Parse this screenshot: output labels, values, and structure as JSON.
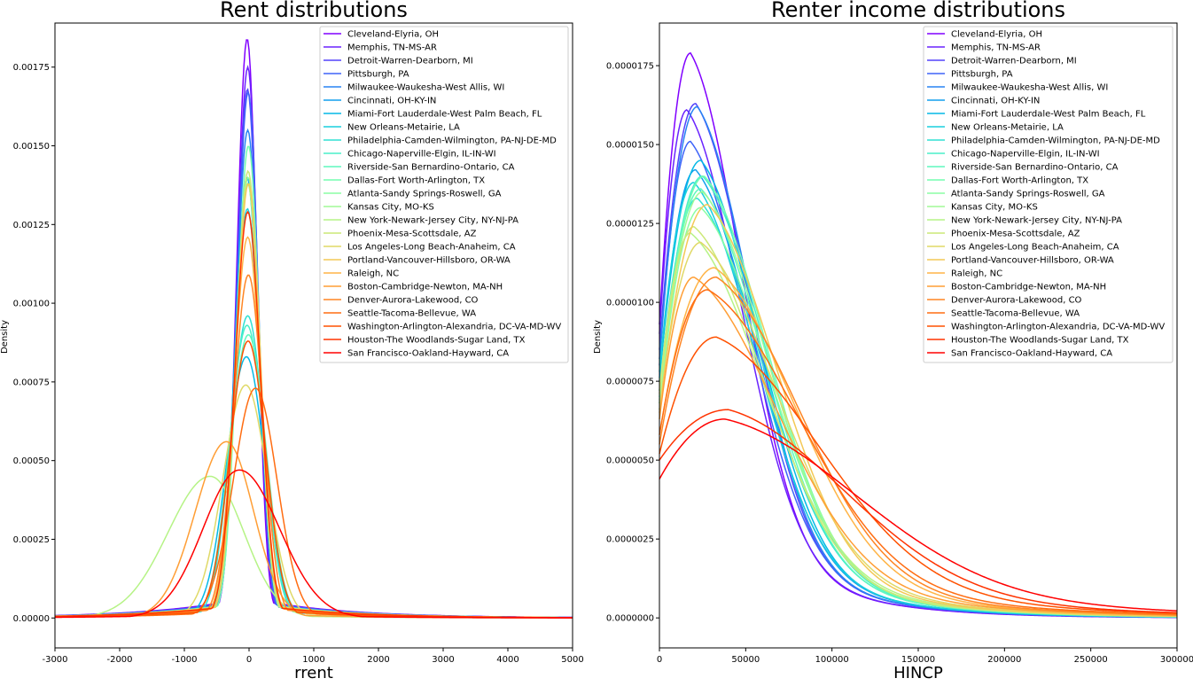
{
  "chart_data": [
    {
      "type": "line",
      "title": "Rent distributions",
      "xlabel": "rrent",
      "ylabel": "Density",
      "xlim": [
        -3000,
        5000
      ],
      "ylim": [
        -9.5e-05,
        0.00189
      ],
      "xticks": [
        -3000,
        -2000,
        -1000,
        0,
        1000,
        2000,
        3000,
        4000,
        5000
      ],
      "xtick_labels": [
        "-3000",
        "-2000",
        "-1000",
        "0",
        "1000",
        "2000",
        "3000",
        "4000",
        "5000"
      ],
      "yticks": [
        0,
        0.00025,
        0.0005,
        0.00075,
        0.001,
        0.00125,
        0.0015,
        0.00175
      ],
      "ytick_labels": [
        "0.00000",
        "0.00025",
        "0.00050",
        "0.00075",
        "0.00100",
        "0.00125",
        "0.00150",
        "0.00175"
      ],
      "legend_position": "top-right",
      "grid": false,
      "series": [
        {
          "name": "Cleveland-Elyria, OH",
          "color": "#8000ff",
          "peak": 0.00184,
          "mode": -30,
          "sd_left": 160,
          "sd_right": 150
        },
        {
          "name": "Memphis, TN-MS-AR",
          "color": "#6a23fe",
          "peak": 0.00175,
          "mode": -20,
          "sd_left": 165,
          "sd_right": 155
        },
        {
          "name": "Detroit-Warren-Dearborn, MI",
          "color": "#5444fc",
          "peak": 0.00168,
          "mode": -25,
          "sd_left": 170,
          "sd_right": 160
        },
        {
          "name": "Pittsburgh, PA",
          "color": "#3e64f9",
          "peak": 0.00167,
          "mode": -15,
          "sd_left": 170,
          "sd_right": 160
        },
        {
          "name": "Milwaukee-Waukesha-West Allis, WI",
          "color": "#2884f3",
          "peak": 0.00155,
          "mode": -20,
          "sd_left": 180,
          "sd_right": 170
        },
        {
          "name": "Cincinnati, OH-KY-IN",
          "color": "#129fee",
          "peak": 0.0014,
          "mode": -30,
          "sd_left": 190,
          "sd_right": 180
        },
        {
          "name": "Miami-Fort Lauderdale-West Palm Beach, FL",
          "color": "#04b9e6",
          "peak": 0.00083,
          "mode": -40,
          "sd_left": 300,
          "sd_right": 280
        },
        {
          "name": "New Orleans-Metairie, LA",
          "color": "#1acfdd",
          "peak": 0.0013,
          "mode": -25,
          "sd_left": 200,
          "sd_right": 190
        },
        {
          "name": "Philadelphia-Camden-Wilmington, PA-NJ-DE-MD",
          "color": "#30e1d3",
          "peak": 0.00096,
          "mode": -20,
          "sd_left": 260,
          "sd_right": 250
        },
        {
          "name": "Chicago-Naperville-Elgin, IL-IN-WI",
          "color": "#48efc8",
          "peak": 0.00093,
          "mode": -30,
          "sd_left": 270,
          "sd_right": 260
        },
        {
          "name": "Riverside-San Bernardino-Ontario, CA",
          "color": "#5ef9bd",
          "peak": 0.0009,
          "mode": -10,
          "sd_left": 280,
          "sd_right": 270
        },
        {
          "name": "Dallas-Fort Worth-Arlington, TX",
          "color": "#74feb0",
          "peak": 0.0015,
          "mode": -10,
          "sd_left": 175,
          "sd_right": 170
        },
        {
          "name": "Atlanta-Sandy Springs-Roswell, GA",
          "color": "#8afea3",
          "peak": 0.0014,
          "mode": -15,
          "sd_left": 185,
          "sd_right": 180
        },
        {
          "name": "Kansas City, MO-KS",
          "color": "#a0fa95",
          "peak": 0.00138,
          "mode": -20,
          "sd_left": 190,
          "sd_right": 180
        },
        {
          "name": "New York-Newark-Jersey City, NY-NJ-PA",
          "color": "#b6f386",
          "peak": 0.00045,
          "mode": -600,
          "sd_left": 650,
          "sd_right": 520
        },
        {
          "name": "Phoenix-Mesa-Scottsdale, AZ",
          "color": "#cce877",
          "peak": 0.00142,
          "mode": -15,
          "sd_left": 185,
          "sd_right": 175
        },
        {
          "name": "Los Angeles-Long Beach-Anaheim, CA",
          "color": "#e0d967",
          "peak": 0.00074,
          "mode": -50,
          "sd_left": 350,
          "sd_right": 330
        },
        {
          "name": "Portland-Vancouver-Hillsboro, OR-WA",
          "color": "#f4c856",
          "peak": 0.00138,
          "mode": -10,
          "sd_left": 190,
          "sd_right": 185
        },
        {
          "name": "Raleigh, NC",
          "color": "#ffb446",
          "peak": 0.00121,
          "mode": -20,
          "sd_left": 210,
          "sd_right": 200
        },
        {
          "name": "Boston-Cambridge-Newton, MA-NH",
          "color": "#ff9e35",
          "peak": 0.00056,
          "mode": -350,
          "sd_left": 480,
          "sd_right": 420
        },
        {
          "name": "Denver-Aurora-Lakewood, CO",
          "color": "#ff8624",
          "peak": 0.00109,
          "mode": -10,
          "sd_left": 230,
          "sd_right": 220
        },
        {
          "name": "Seattle-Tacoma-Bellevue, WA",
          "color": "#ff6d12",
          "peak": 0.00073,
          "mode": 100,
          "sd_left": 340,
          "sd_right": 330
        },
        {
          "name": "Washington-Arlington-Alexandria, DC-VA-MD-WV",
          "color": "#ff5100",
          "peak": 0.00088,
          "mode": -15,
          "sd_left": 280,
          "sd_right": 270
        },
        {
          "name": "Houston-The Woodlands-Sugar Land, TX",
          "color": "#ff3300",
          "peak": 0.00129,
          "mode": -20,
          "sd_left": 200,
          "sd_right": 195
        },
        {
          "name": "San Francisco-Oakland-Hayward, CA",
          "color": "#ff0000",
          "peak": 0.00047,
          "mode": -150,
          "sd_left": 560,
          "sd_right": 620
        }
      ]
    },
    {
      "type": "line",
      "title": "Renter income distributions",
      "xlabel": "HINCP",
      "ylabel": "Density",
      "xlim": [
        0,
        300000
      ],
      "ylim": [
        -9.5e-07,
        1.885e-05
      ],
      "xticks": [
        0,
        50000,
        100000,
        150000,
        200000,
        250000,
        300000
      ],
      "xtick_labels": [
        "0",
        "50000",
        "100000",
        "150000",
        "200000",
        "250000",
        "300000"
      ],
      "yticks": [
        0,
        2.5e-06,
        5e-06,
        7.5e-06,
        1e-05,
        1.25e-05,
        1.5e-05,
        1.75e-05
      ],
      "ytick_labels": [
        "0.0000000",
        "0.0000025",
        "0.0000050",
        "0.0000075",
        "0.0000100",
        "0.0000125",
        "0.0000150",
        "0.0000175"
      ],
      "legend_position": "top-right",
      "grid": false,
      "series": [
        {
          "name": "Cleveland-Elyria, OH",
          "color": "#8000ff",
          "peak": 1.79e-05,
          "mode": 18000,
          "start": 9.3e-06,
          "scale_right": 31000
        },
        {
          "name": "Memphis, TN-MS-AR",
          "color": "#6a23fe",
          "peak": 1.61e-05,
          "mode": 16000,
          "start": 9e-06,
          "scale_right": 33000
        },
        {
          "name": "Detroit-Warren-Dearborn, MI",
          "color": "#5444fc",
          "peak": 1.63e-05,
          "mode": 21000,
          "start": 8.5e-06,
          "scale_right": 33000
        },
        {
          "name": "Pittsburgh, PA",
          "color": "#3e64f9",
          "peak": 1.51e-05,
          "mode": 18000,
          "start": 8e-06,
          "scale_right": 35000
        },
        {
          "name": "Milwaukee-Waukesha-West Allis, WI",
          "color": "#2884f3",
          "peak": 1.62e-05,
          "mode": 22000,
          "start": 8.2e-06,
          "scale_right": 33000
        },
        {
          "name": "Cincinnati, OH-KY-IN",
          "color": "#129fee",
          "peak": 1.42e-05,
          "mode": 21000,
          "start": 7.5e-06,
          "scale_right": 36000
        },
        {
          "name": "Miami-Fort Lauderdale-West Palm Beach, FL",
          "color": "#04b9e6",
          "peak": 1.45e-05,
          "mode": 24000,
          "start": 7.6e-06,
          "scale_right": 35000
        },
        {
          "name": "New Orleans-Metairie, LA",
          "color": "#1acfdd",
          "peak": 1.38e-05,
          "mode": 20000,
          "start": 7.8e-06,
          "scale_right": 37000
        },
        {
          "name": "Philadelphia-Camden-Wilmington, PA-NJ-DE-MD",
          "color": "#30e1d3",
          "peak": 1.33e-05,
          "mode": 22000,
          "start": 7.2e-06,
          "scale_right": 39000
        },
        {
          "name": "Chicago-Naperville-Elgin, IL-IN-WI",
          "color": "#48efc8",
          "peak": 1.4e-05,
          "mode": 25000,
          "start": 7e-06,
          "scale_right": 38000
        },
        {
          "name": "Riverside-San Bernardino-Ontario, CA",
          "color": "#5ef9bd",
          "peak": 1.36e-05,
          "mode": 24000,
          "start": 6.8e-06,
          "scale_right": 38000
        },
        {
          "name": "Dallas-Fort Worth-Arlington, TX",
          "color": "#74feb0",
          "peak": 1.4e-05,
          "mode": 26000,
          "start": 6.9e-06,
          "scale_right": 38000
        },
        {
          "name": "Atlanta-Sandy Springs-Roswell, GA",
          "color": "#8afea3",
          "peak": 1.3e-05,
          "mode": 24000,
          "start": 6.6e-06,
          "scale_right": 40000
        },
        {
          "name": "Kansas City, MO-KS",
          "color": "#a0fa95",
          "peak": 1.35e-05,
          "mode": 25000,
          "start": 6.8e-06,
          "scale_right": 39000
        },
        {
          "name": "New York-Newark-Jersey City, NY-NJ-PA",
          "color": "#b6f386",
          "peak": 1.22e-05,
          "mode": 18000,
          "start": 7.2e-06,
          "scale_right": 44000
        },
        {
          "name": "Phoenix-Mesa-Scottsdale, AZ",
          "color": "#cce877",
          "peak": 1.24e-05,
          "mode": 20000,
          "start": 7.1e-06,
          "scale_right": 42000
        },
        {
          "name": "Los Angeles-Long Beach-Anaheim, CA",
          "color": "#e0d967",
          "peak": 1.19e-05,
          "mode": 24000,
          "start": 6.6e-06,
          "scale_right": 45000
        },
        {
          "name": "Portland-Vancouver-Hillsboro, OR-WA",
          "color": "#f4c856",
          "peak": 1.31e-05,
          "mode": 28000,
          "start": 6.5e-06,
          "scale_right": 41000
        },
        {
          "name": "Raleigh, NC",
          "color": "#ffb446",
          "peak": 1.11e-05,
          "mode": 32000,
          "start": 5.8e-06,
          "scale_right": 48000
        },
        {
          "name": "Boston-Cambridge-Newton, MA-NH",
          "color": "#ff9e35",
          "peak": 1.08e-05,
          "mode": 20000,
          "start": 6.3e-06,
          "scale_right": 50000
        },
        {
          "name": "Denver-Aurora-Lakewood, CO",
          "color": "#ff8624",
          "peak": 1.08e-05,
          "mode": 33000,
          "start": 5.5e-06,
          "scale_right": 50000
        },
        {
          "name": "Seattle-Tacoma-Bellevue, WA",
          "color": "#ff6d12",
          "peak": 1.04e-05,
          "mode": 28000,
          "start": 5.8e-06,
          "scale_right": 55000
        },
        {
          "name": "Washington-Arlington-Alexandria, DC-VA-MD-WV",
          "color": "#ff5100",
          "peak": 8.9e-06,
          "mode": 33000,
          "start": 5.2e-06,
          "scale_right": 62000
        },
        {
          "name": "Houston-The Woodlands-Sugar Land, TX",
          "color": "#ff3300",
          "peak": 6.6e-06,
          "mode": 40000,
          "start": 5e-06,
          "scale_right": 70000
        },
        {
          "name": "San Francisco-Oakland-Hayward, CA",
          "color": "#ff0000",
          "peak": 6.3e-06,
          "mode": 38000,
          "start": 4.4e-06,
          "scale_right": 80000
        }
      ]
    }
  ]
}
